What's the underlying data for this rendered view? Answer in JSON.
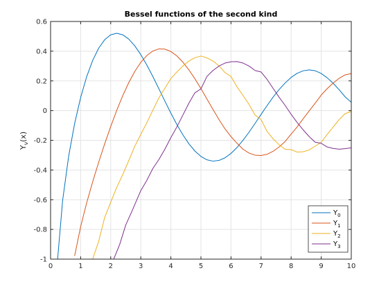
{
  "chart_data": {
    "type": "line",
    "title": "Bessel functions of the second kind",
    "xlabel": "",
    "ylabel": "Y",
    "ylabel_sub": "ν",
    "ylabel_suffix": "(x)",
    "xlim": [
      0,
      10
    ],
    "ylim": [
      -1,
      0.6
    ],
    "x_ticks": [
      0,
      1,
      2,
      3,
      4,
      5,
      6,
      7,
      8,
      9,
      10
    ],
    "y_ticks": [
      -1,
      -0.8,
      -0.6,
      -0.4,
      -0.2,
      0,
      0.2,
      0.4,
      0.6
    ],
    "x_tick_labels": [
      "0",
      "1",
      "2",
      "3",
      "4",
      "5",
      "6",
      "7",
      "8",
      "9",
      "10"
    ],
    "y_tick_labels": [
      "-1",
      "-0.8",
      "-0.6",
      "-0.4",
      "-0.2",
      "0",
      "0.2",
      "0.4",
      "0.6"
    ],
    "grid": true,
    "legend_position": "bottom-right",
    "series": [
      {
        "name": "Y",
        "subscript": "0",
        "color": "#0072BD",
        "x": [
          0.2,
          0.4,
          0.6,
          0.8,
          1,
          1.2,
          1.4,
          1.6,
          1.8,
          2,
          2.2,
          2.4,
          2.6,
          2.8,
          3,
          3.2,
          3.4,
          3.6,
          3.8,
          4,
          4.2,
          4.4,
          4.6,
          4.8,
          5,
          5.2,
          5.4,
          5.6,
          5.8,
          6,
          6.2,
          6.4,
          6.6,
          6.8,
          7,
          7.2,
          7.4,
          7.6,
          7.8,
          8,
          8.2,
          8.4,
          8.6,
          8.8,
          9,
          9.2,
          9.4,
          9.6,
          9.8,
          10
        ],
        "y": [
          -1.0811,
          -0.606,
          -0.3085,
          -0.0868,
          0.0883,
          0.2281,
          0.3379,
          0.4204,
          0.4774,
          0.5104,
          0.5208,
          0.5104,
          0.4813,
          0.4359,
          0.3769,
          0.3071,
          0.2296,
          0.1477,
          0.0645,
          -0.0169,
          -0.0938,
          -0.1633,
          -0.2235,
          -0.2723,
          -0.3085,
          -0.3313,
          -0.3402,
          -0.3354,
          -0.3177,
          -0.2882,
          -0.2483,
          -0.1999,
          -0.1452,
          -0.0864,
          -0.0259,
          0.0339,
          0.0907,
          0.1419,
          0.1857,
          0.2235,
          0.2509,
          0.2679,
          0.274,
          0.2685,
          0.2499,
          0.2207,
          0.1836,
          0.1395,
          0.0916,
          0.0557
        ]
      },
      {
        "name": "Y",
        "subscript": "1",
        "color": "#D95319",
        "x": [
          0.8,
          1,
          1.2,
          1.4,
          1.6,
          1.8,
          2,
          2.2,
          2.4,
          2.6,
          2.8,
          3,
          3.2,
          3.4,
          3.6,
          3.8,
          4,
          4.2,
          4.4,
          4.6,
          4.8,
          5,
          5.2,
          5.4,
          5.6,
          5.8,
          6,
          6.2,
          6.4,
          6.6,
          6.8,
          7,
          7.2,
          7.4,
          7.6,
          7.8,
          8,
          8.2,
          8.4,
          8.6,
          8.8,
          9,
          9.2,
          9.4,
          9.6,
          9.8,
          10
        ],
        "y": [
          -0.9781,
          -0.7812,
          -0.6211,
          -0.4791,
          -0.3476,
          -0.2237,
          -0.107,
          0.0015,
          0.1005,
          0.1884,
          0.2635,
          0.3247,
          0.3707,
          0.401,
          0.4154,
          0.4141,
          0.3979,
          0.368,
          0.326,
          0.274,
          0.2142,
          0.1479,
          0.0783,
          0.008,
          -0.06,
          -0.123,
          -0.175,
          -0.22,
          -0.26,
          -0.286,
          -0.3,
          -0.3027,
          -0.294,
          -0.274,
          -0.245,
          -0.208,
          -0.1581,
          -0.11,
          -0.055,
          -0.002,
          0.05,
          0.1043,
          0.148,
          0.186,
          0.218,
          0.241,
          0.249
        ]
      },
      {
        "name": "Y",
        "subscript": "2",
        "color": "#EDB120",
        "x": [
          1.4,
          1.6,
          1.8,
          2,
          2.2,
          2.4,
          2.6,
          2.8,
          3,
          3.2,
          3.4,
          3.6,
          3.8,
          4,
          4.2,
          4.4,
          4.6,
          4.8,
          5,
          5.2,
          5.4,
          5.6,
          5.8,
          6,
          6.2,
          6.4,
          6.6,
          6.8,
          7,
          7.2,
          7.4,
          7.6,
          7.8,
          8,
          8.2,
          8.4,
          8.6,
          8.8,
          9,
          9.2,
          9.4,
          9.6,
          9.8,
          10
        ],
        "y": [
          -1.0,
          -0.88,
          -0.719,
          -0.6174,
          -0.517,
          -0.4308,
          -0.337,
          -0.24,
          -0.1604,
          -0.082,
          0.002,
          0.085,
          0.15,
          0.2159,
          0.26,
          0.3,
          0.334,
          0.356,
          0.3677,
          0.355,
          0.334,
          0.301,
          0.256,
          0.2299,
          0.16,
          0.102,
          0.042,
          -0.03,
          -0.0605,
          -0.14,
          -0.19,
          -0.23,
          -0.26,
          -0.263,
          -0.279,
          -0.277,
          -0.265,
          -0.239,
          -0.214,
          -0.16,
          -0.11,
          -0.06,
          -0.02,
          -0.006
        ]
      },
      {
        "name": "Y",
        "subscript": "3",
        "color": "#7E2F8E",
        "x": [
          2.1,
          2.3,
          2.5,
          2.7,
          3,
          3.2,
          3.4,
          3.6,
          3.8,
          4,
          4.2,
          4.4,
          4.6,
          4.8,
          5,
          5.2,
          5.4,
          5.6,
          5.8,
          6,
          6.2,
          6.4,
          6.6,
          6.8,
          7,
          7.2,
          7.4,
          7.6,
          7.8,
          8,
          8.2,
          8.4,
          8.6,
          8.8,
          9,
          9.2,
          9.4,
          9.6,
          9.8,
          10
        ],
        "y": [
          -1.0,
          -0.9,
          -0.77,
          -0.68,
          -0.5385,
          -0.47,
          -0.39,
          -0.33,
          -0.26,
          -0.182,
          -0.11,
          -0.03,
          0.05,
          0.12,
          0.1463,
          0.23,
          0.27,
          0.3,
          0.32,
          0.3288,
          0.33,
          0.32,
          0.3,
          0.27,
          0.26,
          0.21,
          0.15,
          0.09,
          0.035,
          -0.025,
          -0.08,
          -0.13,
          -0.175,
          -0.213,
          -0.22,
          -0.245,
          -0.255,
          -0.26,
          -0.256,
          -0.2507
        ]
      }
    ]
  }
}
